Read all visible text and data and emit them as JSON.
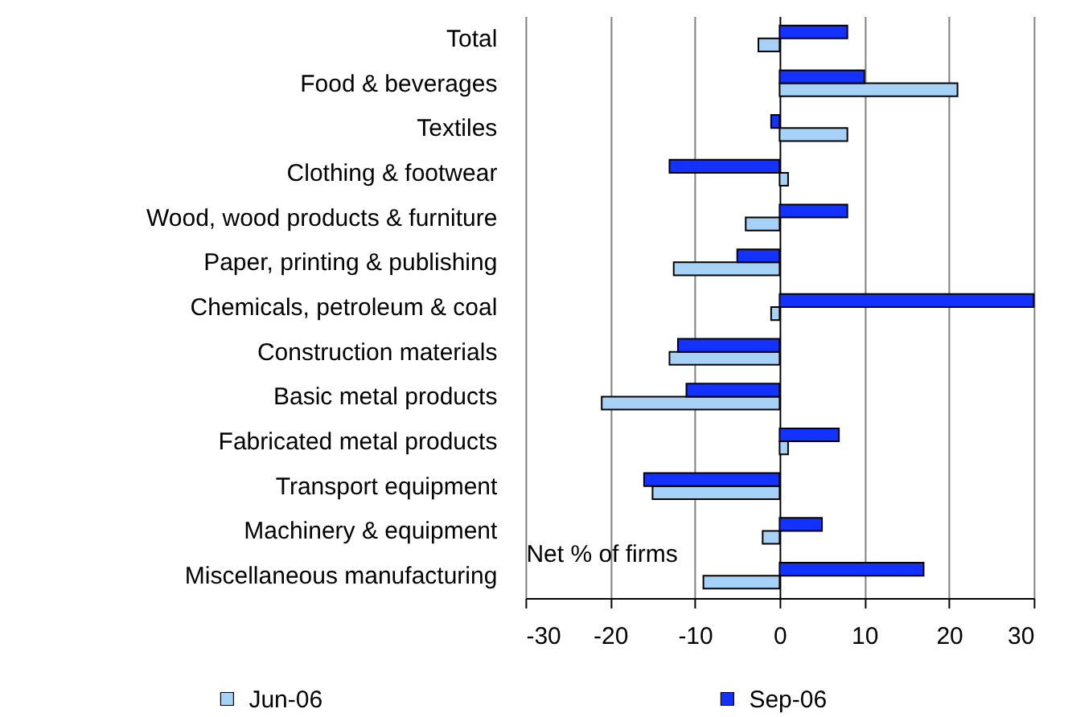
{
  "chart_data": {
    "type": "bar",
    "orientation": "horizontal",
    "categories": [
      "Total",
      "Food & beverages",
      "Textiles",
      "Clothing & footwear",
      "Wood, wood products & furniture",
      "Paper, printing & publishing",
      "Chemicals, petroleum & coal",
      "Construction materials",
      "Basic metal products",
      "Fabricated metal products",
      "Transport equipment",
      "Machinery & equipment",
      "Miscellaneous manufacturing"
    ],
    "series": [
      {
        "name": "Jun-06",
        "color": "#a6d2f7",
        "values": [
          -2.5,
          21,
          8,
          1,
          -4,
          -12.5,
          -1,
          -13,
          -21,
          1,
          -15,
          -2,
          -9
        ]
      },
      {
        "name": "Sep-06",
        "color": "#1432ff",
        "values": [
          8,
          10,
          -1,
          -13,
          8,
          -5,
          30,
          -12,
          -11,
          7,
          -16,
          5,
          17
        ]
      }
    ],
    "xlabel": "Net % of firms",
    "xlim": [
      -30,
      30
    ],
    "xticks": [
      -30,
      -20,
      -10,
      0,
      10,
      20,
      30
    ],
    "grid": "x",
    "legend": "bottom"
  }
}
